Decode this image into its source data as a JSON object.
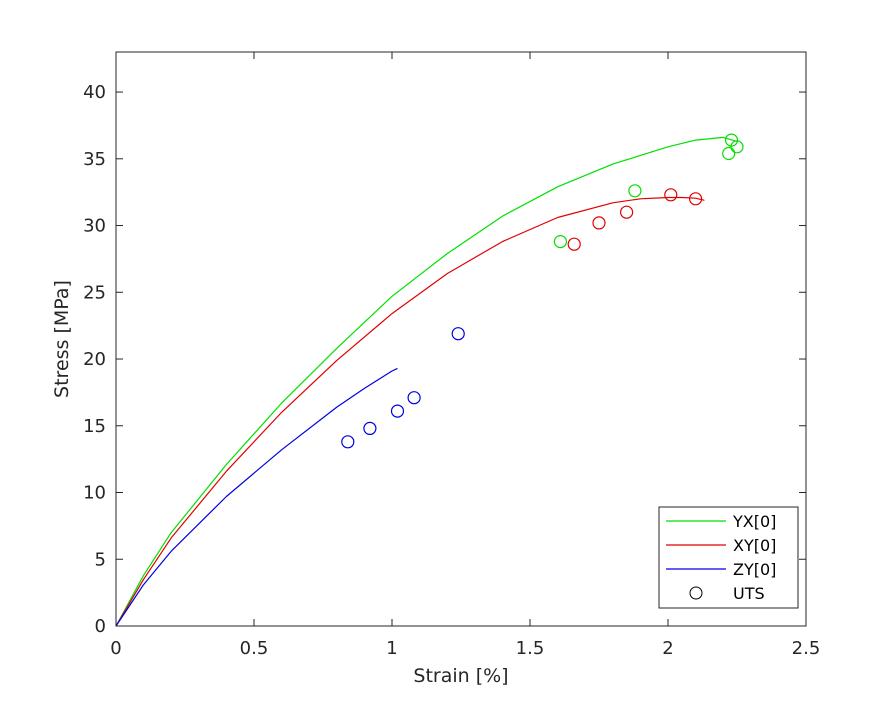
{
  "chart_data": {
    "type": "line",
    "xlabel": "Strain [%]",
    "ylabel": "Stress [MPa]",
    "xlim": [
      0,
      2.5
    ],
    "ylim": [
      0,
      43
    ],
    "xticks": [
      0,
      0.5,
      1,
      1.5,
      2,
      2.5
    ],
    "xtick_labels": [
      "0",
      "0.5",
      "1",
      "1.5",
      "2",
      "2.5"
    ],
    "yticks": [
      0,
      5,
      10,
      15,
      20,
      25,
      30,
      35,
      40
    ],
    "ytick_labels": [
      "0",
      "5",
      "10",
      "15",
      "20",
      "25",
      "30",
      "35",
      "40"
    ],
    "grid": false,
    "legend_position": "bottom-right",
    "series": [
      {
        "name": "YX[0]",
        "color": "#00e000",
        "x": [
          0,
          0.1,
          0.2,
          0.4,
          0.6,
          0.8,
          1.0,
          1.2,
          1.4,
          1.6,
          1.8,
          2.0,
          2.1,
          2.2,
          2.25
        ],
        "y": [
          0,
          3.8,
          7.0,
          12.1,
          16.7,
          20.8,
          24.7,
          27.9,
          30.7,
          32.9,
          34.6,
          35.9,
          36.4,
          36.6,
          36.3
        ]
      },
      {
        "name": "XY[0]",
        "color": "#e00000",
        "x": [
          0,
          0.1,
          0.2,
          0.4,
          0.6,
          0.8,
          1.0,
          1.2,
          1.4,
          1.6,
          1.8,
          1.9,
          2.0,
          2.05,
          2.1,
          2.13,
          2.1
        ],
        "y": [
          0,
          3.5,
          6.6,
          11.6,
          16.0,
          19.9,
          23.4,
          26.4,
          28.8,
          30.6,
          31.7,
          32.0,
          32.1,
          32.1,
          32.05,
          31.9,
          32.05
        ]
      },
      {
        "name": "ZY[0]",
        "color": "#0000e0",
        "x": [
          0,
          0.1,
          0.2,
          0.4,
          0.6,
          0.8,
          0.9,
          1.0,
          1.02
        ],
        "y": [
          0,
          3.1,
          5.6,
          9.7,
          13.2,
          16.4,
          17.8,
          19.1,
          19.3
        ]
      }
    ],
    "uts_points": {
      "name": "UTS",
      "YX[0]": {
        "x": [
          1.61,
          1.88,
          2.22,
          2.23,
          2.25
        ],
        "y": [
          28.8,
          32.6,
          35.4,
          36.4,
          35.9
        ]
      },
      "XY[0]": {
        "x": [
          1.66,
          1.75,
          1.85,
          2.01,
          2.1
        ],
        "y": [
          28.6,
          30.2,
          31.0,
          32.3,
          32.0
        ]
      },
      "ZY[0]": {
        "x": [
          0.84,
          0.92,
          1.02,
          1.08,
          1.24
        ],
        "y": [
          13.8,
          14.8,
          16.1,
          17.1,
          21.9
        ]
      }
    }
  }
}
